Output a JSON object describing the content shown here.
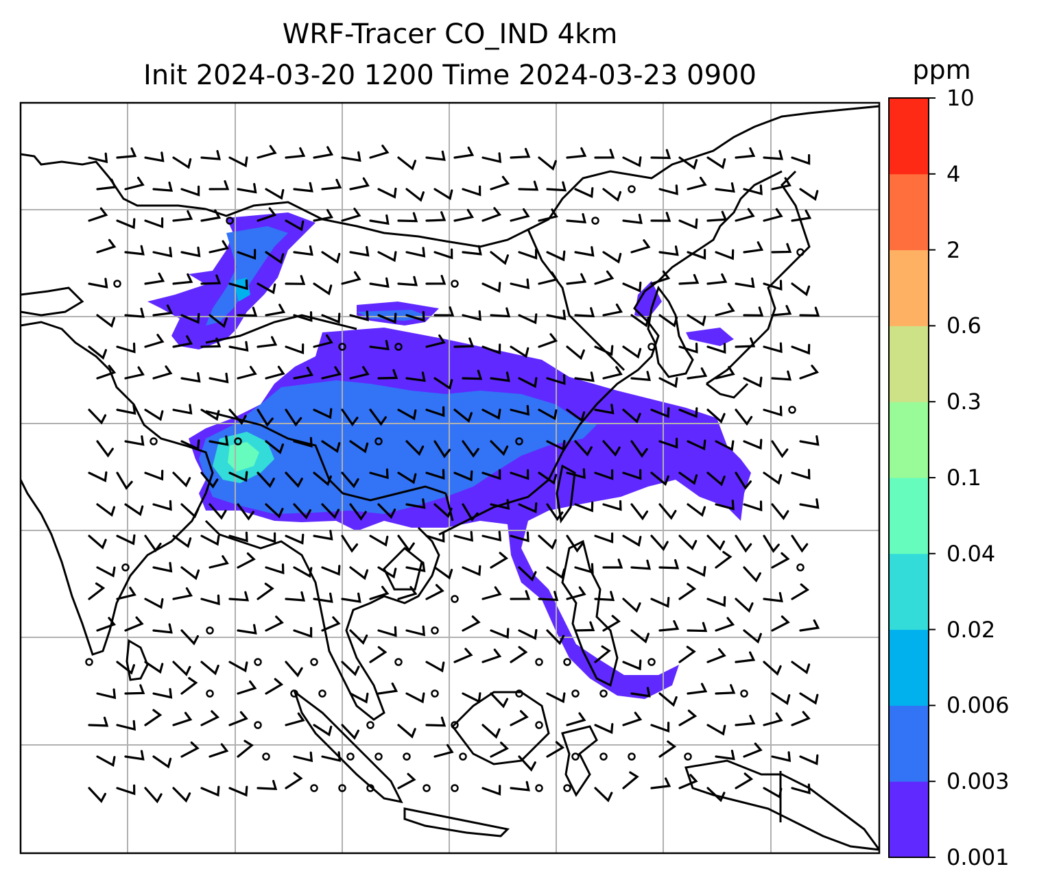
{
  "title": {
    "line1": "WRF-Tracer CO_IND 4km",
    "line2": "Init 2024-03-20 1200 Time 2024-03-23 0900"
  },
  "colorbar": {
    "unit": "ppm",
    "levels": [
      "0.001",
      "0.003",
      "0.006",
      "0.02",
      "0.04",
      "0.1",
      "0.3",
      "0.6",
      "2",
      "4",
      "10"
    ],
    "colors": [
      "#6029ff",
      "#3373f5",
      "#00b1ee",
      "#33dcd8",
      "#66fcbd",
      "#99fa98",
      "#cde187",
      "#ffb163",
      "#ff6f3d",
      "#ff2a15"
    ]
  },
  "map": {
    "gridlines": true,
    "grid_color": "#b0b0b0",
    "coastline_color": "#000000",
    "wind_barb_color": "#000000",
    "features": [
      "coastlines",
      "country-borders",
      "wind-barbs",
      "tracer-field"
    ]
  }
}
